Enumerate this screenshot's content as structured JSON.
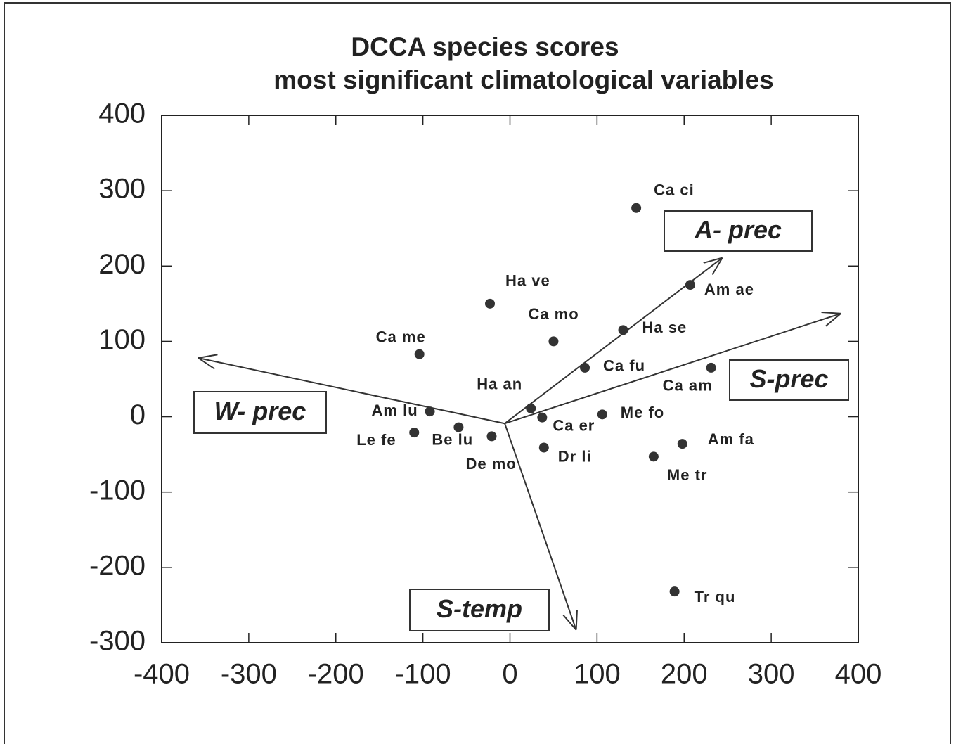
{
  "chart_data": {
    "type": "scatter",
    "title": "DCCA species scores",
    "subtitle": "most significant  climatological variables",
    "xlim": [
      -400,
      400
    ],
    "ylim": [
      -300,
      400
    ],
    "xticks": [
      -400,
      -300,
      -200,
      -100,
      0,
      100,
      200,
      300,
      400
    ],
    "yticks": [
      -300,
      -200,
      -100,
      0,
      100,
      200,
      300,
      400
    ],
    "grid": false,
    "color": "#333333",
    "points": {
      "labels": [
        "Ca ci",
        "Am ae",
        "Ha se",
        "Ca fu",
        "Ca am",
        "Ha ve",
        "Ca mo",
        "Ca me",
        "Ha an",
        "Ca er",
        "Me fo",
        "Am lu",
        "Le fe",
        "Be lu",
        "De mo",
        "Dr li",
        "Am fa",
        "Me tr",
        "Tr qu"
      ],
      "x": [
        145,
        207,
        130,
        86,
        231,
        -23,
        50,
        -104,
        24,
        37,
        106,
        -92,
        -110,
        -59,
        -21,
        39,
        198,
        165,
        189
      ],
      "y": [
        277,
        175,
        115,
        65,
        65,
        150,
        100,
        83,
        11,
        -1,
        3,
        7,
        -21,
        -14,
        -26,
        -41,
        -36,
        -53,
        -232
      ]
    },
    "arrow_origin": [
      -6,
      -9
    ],
    "arrows": [
      {
        "label": "A- prec",
        "x": 244,
        "y": 211
      },
      {
        "label": "S-prec",
        "x": 380,
        "y": 137
      },
      {
        "label": "W- prec",
        "x": -358,
        "y": 78
      },
      {
        "label": "S-temp",
        "x": 76,
        "y": -283
      }
    ]
  }
}
